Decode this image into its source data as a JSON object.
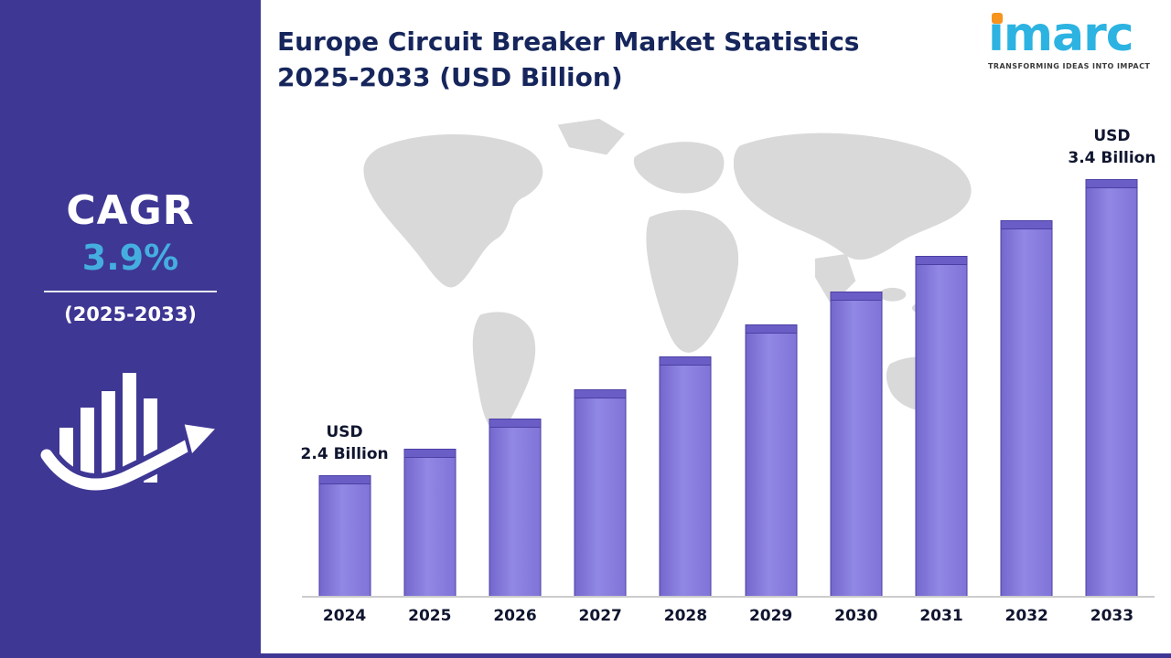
{
  "sidebar": {
    "cagr_label": "CAGR",
    "cagr_value": "3.9%",
    "period": "(2025-2033)"
  },
  "header": {
    "title_line1": "Europe Circuit Breaker Market Statistics",
    "title_line2": "2025-2033 (USD Billion)"
  },
  "logo": {
    "brand": "imarc",
    "tagline": "TRANSFORMING IDEAS INTO IMPACT"
  },
  "colors": {
    "sidebar_purple": "#3E3794",
    "bar_purple": "#8074D8",
    "bar_top": "#6A5EC6",
    "accent_cyan": "#45AEE0",
    "logo_cyan": "#2CB3E2",
    "logo_orange": "#F7941D",
    "title_navy": "#16265C",
    "map_gray": "#D9D9D9"
  },
  "chart_data": {
    "type": "bar",
    "title": "Europe Circuit Breaker Market Statistics 2025-2033 (USD Billion)",
    "unit": "USD Billion",
    "xlabel": "",
    "ylabel": "",
    "grid": false,
    "legend": "none",
    "categories": [
      "2024",
      "2025",
      "2026",
      "2027",
      "2028",
      "2029",
      "2030",
      "2031",
      "2032",
      "2033"
    ],
    "values": [
      2.4,
      2.49,
      2.59,
      2.69,
      2.8,
      2.91,
      3.02,
      3.14,
      3.26,
      3.4
    ],
    "ylim": [
      2.2,
      3.5
    ],
    "annotations": [
      {
        "index": 0,
        "lines": [
          "USD",
          "2.4 Billion"
        ]
      },
      {
        "index": 9,
        "lines": [
          "USD",
          "3.4 Billion"
        ]
      }
    ]
  }
}
